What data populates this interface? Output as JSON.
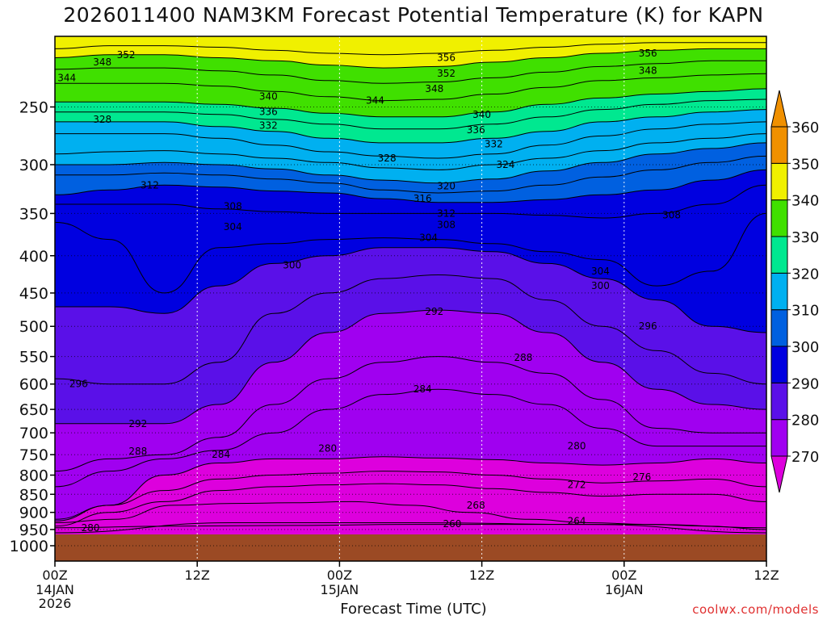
{
  "title": "2026011400 NAM3KM Forecast Potential Temperature (K) for KAPN",
  "credit": "coolwx.com/models",
  "chart_data": {
    "type": "heatmap",
    "title": "2026011400 NAM3KM Forecast Potential Temperature (K) for KAPN",
    "xlabel": "Forecast Time (UTC)",
    "ylabel": "",
    "y_scale": "log-pressure",
    "y_inverted": true,
    "x_range_hours": [
      0,
      60
    ],
    "y_range_hpa": [
      1000,
      200
    ],
    "grid": true,
    "x_ticks": [
      {
        "hour": 0,
        "label": "00Z",
        "sub": [
          "14JAN",
          "2026"
        ]
      },
      {
        "hour": 12,
        "label": "12Z",
        "sub": []
      },
      {
        "hour": 24,
        "label": "00Z",
        "sub": [
          "15JAN"
        ]
      },
      {
        "hour": 36,
        "label": "12Z",
        "sub": []
      },
      {
        "hour": 48,
        "label": "00Z",
        "sub": [
          "16JAN"
        ]
      },
      {
        "hour": 60,
        "label": "12Z",
        "sub": []
      }
    ],
    "y_ticks": [
      250,
      300,
      350,
      400,
      450,
      500,
      550,
      600,
      650,
      700,
      750,
      800,
      850,
      900,
      950,
      1000
    ],
    "colorbar": {
      "levels": [
        270,
        280,
        290,
        300,
        310,
        320,
        330,
        340,
        350,
        360
      ],
      "colors": [
        "#dd00dd",
        "#a000f0",
        "#5a10e8",
        "#0000e0",
        "#0060e0",
        "#00b0f0",
        "#00e890",
        "#40e000",
        "#f0f000",
        "#f09000"
      ],
      "labels": [
        "270",
        "280",
        "290",
        "300",
        "310",
        "320",
        "330",
        "340",
        "350",
        "360"
      ]
    },
    "ground_color": "#9b4a24",
    "isentropes": [
      {
        "theta": 260,
        "p": [
          960,
          930,
          930,
          935,
          960
        ]
      },
      {
        "theta": 264,
        "p": [
          945,
          940,
          938,
          935,
          935,
          935,
          945
        ]
      },
      {
        "theta": 268,
        "p": [
          930,
          920,
          880,
          875,
          873,
          870,
          880,
          900,
          920,
          930,
          935,
          940,
          950
        ]
      },
      {
        "theta": 272,
        "p": [
          940,
          900,
          870,
          840,
          830,
          825,
          822,
          825,
          835,
          845,
          855,
          850,
          850,
          870
        ]
      },
      {
        "theta": 276,
        "p": [
          920,
          880,
          840,
          810,
          800,
          795,
          790,
          792,
          800,
          810,
          820,
          815,
          810,
          830
        ]
      },
      {
        "theta": 280,
        "p": [
          925,
          880,
          800,
          770,
          760,
          760,
          755,
          758,
          762,
          770,
          775,
          770,
          760,
          770
        ]
      },
      {
        "theta": 284,
        "p": [
          830,
          790,
          760,
          740,
          700,
          650,
          620,
          610,
          620,
          640,
          690,
          730,
          730,
          730
        ]
      },
      {
        "theta": 288,
        "p": [
          790,
          760,
          750,
          710,
          640,
          590,
          560,
          550,
          560,
          580,
          630,
          690,
          700,
          700
        ]
      },
      {
        "theta": 292,
        "p": [
          680,
          680,
          680,
          640,
          560,
          510,
          480,
          475,
          480,
          510,
          560,
          610,
          640,
          650
        ]
      },
      {
        "theta": 296,
        "p": [
          590,
          600,
          600,
          560,
          480,
          450,
          430,
          425,
          430,
          460,
          500,
          540,
          580,
          600
        ]
      },
      {
        "theta": 300,
        "p": [
          470,
          470,
          480,
          440,
          410,
          400,
          390,
          390,
          395,
          410,
          430,
          460,
          500,
          510
        ]
      },
      {
        "theta": 304,
        "p": [
          360,
          380,
          450,
          390,
          385,
          380,
          378,
          380,
          385,
          395,
          405,
          440,
          420,
          350
        ]
      },
      {
        "theta": 308,
        "p": [
          340,
          340,
          340,
          345,
          348,
          350,
          350,
          350,
          350,
          352,
          355,
          350,
          340,
          320
        ]
      },
      {
        "theta": 312,
        "p": [
          330,
          325,
          320,
          322,
          326,
          328,
          334,
          338,
          338,
          335,
          330,
          325,
          315,
          305
        ]
      },
      {
        "theta": 316,
        "p": [
          310,
          310,
          308,
          310,
          314,
          318,
          325,
          328,
          326,
          320,
          312,
          305,
          298,
          292
        ]
      },
      {
        "theta": 320,
        "p": [
          300,
          300,
          298,
          300,
          304,
          310,
          315,
          318,
          314,
          306,
          298,
          290,
          285,
          280
        ]
      },
      {
        "theta": 324,
        "p": [
          290,
          288,
          287,
          290,
          294,
          298,
          303,
          305,
          300,
          294,
          287,
          280,
          276,
          272
        ]
      },
      {
        "theta": 328,
        "p": [
          272,
          272,
          272,
          276,
          282,
          288,
          292,
          294,
          290,
          282,
          274,
          268,
          264,
          262
        ]
      },
      {
        "theta": 332,
        "p": [
          262,
          262,
          262,
          266,
          270,
          276,
          280,
          280,
          276,
          270,
          262,
          258,
          254,
          252
        ]
      },
      {
        "theta": 336,
        "p": [
          254,
          254,
          254,
          256,
          260,
          264,
          268,
          268,
          264,
          258,
          252,
          248,
          245,
          244
        ]
      },
      {
        "theta": 340,
        "p": [
          246,
          246,
          246,
          248,
          251,
          255,
          258,
          258,
          254,
          248,
          243,
          240,
          238,
          236
        ]
      },
      {
        "theta": 344,
        "p": [
          232,
          232,
          232,
          234,
          238,
          242,
          245,
          244,
          240,
          235,
          230,
          228,
          226,
          225
        ]
      },
      {
        "theta": 348,
        "p": [
          222,
          221,
          221,
          223,
          226,
          230,
          232,
          231,
          228,
          224,
          220,
          218,
          216,
          216
        ]
      },
      {
        "theta": 352,
        "p": [
          214,
          212,
          212,
          214,
          216,
          219,
          221,
          220,
          217,
          214,
          211,
          209,
          208,
          208
        ]
      },
      {
        "theta": 356,
        "p": [
          208,
          206,
          206,
          207,
          209,
          211,
          212,
          211,
          209,
          207,
          205,
          204,
          204,
          204
        ]
      }
    ],
    "contour_labels": [
      {
        "text": "352",
        "hour": 6.0,
        "p": 212
      },
      {
        "text": "348",
        "hour": 4.0,
        "p": 217
      },
      {
        "text": "344",
        "hour": 1.0,
        "p": 228
      },
      {
        "text": "356",
        "hour": 33.0,
        "p": 214
      },
      {
        "text": "352",
        "hour": 33.0,
        "p": 225
      },
      {
        "text": "348",
        "hour": 32.0,
        "p": 236
      },
      {
        "text": "356",
        "hour": 50.0,
        "p": 211
      },
      {
        "text": "348",
        "hour": 50.0,
        "p": 223
      },
      {
        "text": "340",
        "hour": 18.0,
        "p": 242
      },
      {
        "text": "336",
        "hour": 18.0,
        "p": 254
      },
      {
        "text": "332",
        "hour": 18.0,
        "p": 265
      },
      {
        "text": "344",
        "hour": 27.0,
        "p": 245
      },
      {
        "text": "340",
        "hour": 36.0,
        "p": 256
      },
      {
        "text": "336",
        "hour": 35.5,
        "p": 269
      },
      {
        "text": "332",
        "hour": 37.0,
        "p": 281
      },
      {
        "text": "328",
        "hour": 4.0,
        "p": 260
      },
      {
        "text": "328",
        "hour": 28.0,
        "p": 294
      },
      {
        "text": "324",
        "hour": 38.0,
        "p": 300
      },
      {
        "text": "320",
        "hour": 33.0,
        "p": 321
      },
      {
        "text": "316",
        "hour": 31.0,
        "p": 334
      },
      {
        "text": "312",
        "hour": 33.0,
        "p": 350
      },
      {
        "text": "308",
        "hour": 33.0,
        "p": 363
      },
      {
        "text": "304",
        "hour": 31.5,
        "p": 378
      },
      {
        "text": "312",
        "hour": 8.0,
        "p": 320
      },
      {
        "text": "308",
        "hour": 15.0,
        "p": 342
      },
      {
        "text": "304",
        "hour": 15.0,
        "p": 365
      },
      {
        "text": "308",
        "hour": 52.0,
        "p": 352
      },
      {
        "text": "304",
        "hour": 46.0,
        "p": 420
      },
      {
        "text": "300",
        "hour": 20.0,
        "p": 412
      },
      {
        "text": "300",
        "hour": 46.0,
        "p": 440
      },
      {
        "text": "292",
        "hour": 32.0,
        "p": 477
      },
      {
        "text": "296",
        "hour": 50.0,
        "p": 500
      },
      {
        "text": "288",
        "hour": 39.5,
        "p": 552
      },
      {
        "text": "284",
        "hour": 31.0,
        "p": 610
      },
      {
        "text": "296",
        "hour": 2.0,
        "p": 600
      },
      {
        "text": "292",
        "hour": 7.0,
        "p": 680
      },
      {
        "text": "288",
        "hour": 7.0,
        "p": 742
      },
      {
        "text": "284",
        "hour": 14.0,
        "p": 750
      },
      {
        "text": "280",
        "hour": 23.0,
        "p": 735
      },
      {
        "text": "280",
        "hour": 44.0,
        "p": 730
      },
      {
        "text": "276",
        "hour": 49.5,
        "p": 805
      },
      {
        "text": "272",
        "hour": 44.0,
        "p": 825
      },
      {
        "text": "268",
        "hour": 35.5,
        "p": 880
      },
      {
        "text": "264",
        "hour": 44.0,
        "p": 925
      },
      {
        "text": "260",
        "hour": 33.5,
        "p": 933
      },
      {
        "text": "280",
        "hour": 3.0,
        "p": 945
      }
    ]
  }
}
